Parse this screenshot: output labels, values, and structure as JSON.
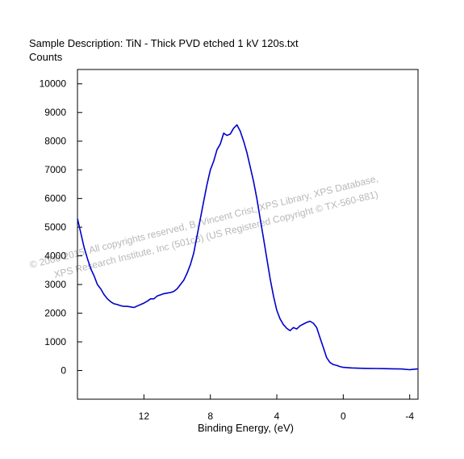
{
  "header": {
    "title": "Sample Description:  TiN - Thick PVD etched 1 kV 120s.txt",
    "ylabel": "Counts"
  },
  "watermark": {
    "line1": "©  2000-2015,  All copyrights reserved,   B. Vincent Crist,  XPS Library, XPS Database,",
    "line2": "XPS Research Institute, Inc (501c3)   (US Registered Copyright © TX-560-881)"
  },
  "colors": {
    "line": "#0000cc",
    "axis": "#000000",
    "watermark": "#b8b8b8"
  },
  "chart_data": {
    "type": "line",
    "title": "Sample Description:  TiN - Thick PVD etched 1 kV 120s.txt",
    "xlabel": "Binding Energy, (eV)",
    "ylabel": "Counts",
    "xlim": [
      16,
      -4.5
    ],
    "ylim": [
      -1000,
      10500
    ],
    "x_reversed": true,
    "grid": false,
    "yticks": [
      0,
      1000,
      2000,
      3000,
      4000,
      5000,
      6000,
      7000,
      8000,
      9000,
      10000
    ],
    "xticks": [
      12,
      8,
      4,
      0,
      -4
    ],
    "series": [
      {
        "points": [
          [
            16.0,
            5300
          ],
          [
            15.8,
            4800
          ],
          [
            15.6,
            4300
          ],
          [
            15.4,
            3900
          ],
          [
            15.2,
            3550
          ],
          [
            15.0,
            3300
          ],
          [
            14.8,
            3000
          ],
          [
            14.6,
            2850
          ],
          [
            14.4,
            2650
          ],
          [
            14.2,
            2500
          ],
          [
            14.0,
            2400
          ],
          [
            13.8,
            2330
          ],
          [
            13.6,
            2300
          ],
          [
            13.4,
            2260
          ],
          [
            13.2,
            2240
          ],
          [
            13.0,
            2240
          ],
          [
            12.8,
            2220
          ],
          [
            12.6,
            2200
          ],
          [
            12.4,
            2250
          ],
          [
            12.2,
            2300
          ],
          [
            12.0,
            2350
          ],
          [
            11.8,
            2420
          ],
          [
            11.6,
            2500
          ],
          [
            11.4,
            2500
          ],
          [
            11.2,
            2600
          ],
          [
            11.0,
            2640
          ],
          [
            10.8,
            2680
          ],
          [
            10.6,
            2700
          ],
          [
            10.4,
            2720
          ],
          [
            10.2,
            2760
          ],
          [
            10.0,
            2850
          ],
          [
            9.8,
            3000
          ],
          [
            9.6,
            3150
          ],
          [
            9.4,
            3400
          ],
          [
            9.2,
            3700
          ],
          [
            9.0,
            4100
          ],
          [
            8.8,
            4700
          ],
          [
            8.6,
            5300
          ],
          [
            8.4,
            5900
          ],
          [
            8.2,
            6500
          ],
          [
            8.0,
            7000
          ],
          [
            7.8,
            7300
          ],
          [
            7.6,
            7700
          ],
          [
            7.4,
            7900
          ],
          [
            7.2,
            8280
          ],
          [
            7.0,
            8200
          ],
          [
            6.8,
            8250
          ],
          [
            6.6,
            8450
          ],
          [
            6.4,
            8570
          ],
          [
            6.2,
            8350
          ],
          [
            6.0,
            8000
          ],
          [
            5.8,
            7600
          ],
          [
            5.6,
            7100
          ],
          [
            5.4,
            6600
          ],
          [
            5.2,
            6000
          ],
          [
            5.0,
            5300
          ],
          [
            4.8,
            4600
          ],
          [
            4.6,
            3900
          ],
          [
            4.4,
            3200
          ],
          [
            4.2,
            2600
          ],
          [
            4.0,
            2100
          ],
          [
            3.8,
            1800
          ],
          [
            3.6,
            1600
          ],
          [
            3.4,
            1470
          ],
          [
            3.2,
            1390
          ],
          [
            3.0,
            1500
          ],
          [
            2.8,
            1450
          ],
          [
            2.6,
            1560
          ],
          [
            2.4,
            1620
          ],
          [
            2.2,
            1680
          ],
          [
            2.0,
            1720
          ],
          [
            1.8,
            1650
          ],
          [
            1.6,
            1500
          ],
          [
            1.4,
            1150
          ],
          [
            1.2,
            800
          ],
          [
            1.0,
            450
          ],
          [
            0.8,
            280
          ],
          [
            0.6,
            210
          ],
          [
            0.4,
            180
          ],
          [
            0.2,
            140
          ],
          [
            0.0,
            110
          ],
          [
            -0.5,
            90
          ],
          [
            -1.0,
            80
          ],
          [
            -1.5,
            75
          ],
          [
            -2.0,
            70
          ],
          [
            -2.5,
            65
          ],
          [
            -3.0,
            60
          ],
          [
            -3.5,
            55
          ],
          [
            -4.0,
            30
          ],
          [
            -4.5,
            60
          ]
        ]
      }
    ]
  }
}
